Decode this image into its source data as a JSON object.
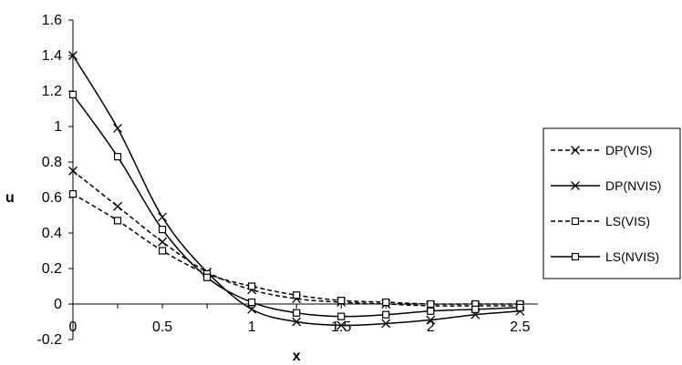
{
  "chart_data": {
    "type": "line",
    "title": "",
    "xlabel": "x",
    "ylabel": "u",
    "xlim": [
      0,
      2.6
    ],
    "ylim": [
      -0.2,
      1.6
    ],
    "x_ticks": [
      "0",
      "0.5",
      "1",
      "1.5",
      "2",
      "2.5"
    ],
    "x_tick_values": [
      0,
      0.5,
      1,
      1.5,
      2,
      2.5
    ],
    "y_ticks": [
      "-0.2",
      "0",
      "0.2",
      "0.4",
      "0.6",
      "0.8",
      "1",
      "1.2",
      "1.4",
      "1.6"
    ],
    "y_tick_values": [
      -0.2,
      0,
      0.2,
      0.4,
      0.6,
      0.8,
      1,
      1.2,
      1.4,
      1.6
    ],
    "grid": false,
    "legend_position": "right",
    "series": [
      {
        "name": "DP(VIS)",
        "line_style": "dashed",
        "marker": "x",
        "color": "#000000",
        "x": [
          0,
          0.25,
          0.5,
          0.75,
          1,
          1.25,
          1.5,
          1.75,
          2,
          2.25,
          2.5
        ],
        "y": [
          0.75,
          0.55,
          0.35,
          0.18,
          0.08,
          0.03,
          0.01,
          0.0,
          -0.01,
          -0.01,
          -0.01
        ]
      },
      {
        "name": "DP(NVIS)",
        "line_style": "solid",
        "marker": "x",
        "color": "#000000",
        "x": [
          0,
          0.25,
          0.5,
          0.75,
          1,
          1.25,
          1.5,
          1.75,
          2,
          2.25,
          2.5
        ],
        "y": [
          1.4,
          0.99,
          0.49,
          0.18,
          -0.03,
          -0.1,
          -0.12,
          -0.11,
          -0.09,
          -0.06,
          -0.04
        ]
      },
      {
        "name": "LS(VIS)",
        "line_style": "dashed",
        "marker": "square",
        "color": "#000000",
        "x": [
          0,
          0.25,
          0.5,
          0.75,
          1,
          1.25,
          1.5,
          1.75,
          2,
          2.25,
          2.5
        ],
        "y": [
          0.62,
          0.47,
          0.3,
          0.17,
          0.1,
          0.05,
          0.02,
          0.01,
          0.0,
          0.0,
          0.0
        ]
      },
      {
        "name": "LS(NVIS)",
        "line_style": "solid",
        "marker": "square",
        "color": "#000000",
        "x": [
          0,
          0.25,
          0.5,
          0.75,
          1,
          1.25,
          1.5,
          1.75,
          2,
          2.25,
          2.5
        ],
        "y": [
          1.18,
          0.83,
          0.42,
          0.15,
          0.01,
          -0.05,
          -0.07,
          -0.06,
          -0.04,
          -0.03,
          -0.02
        ]
      }
    ]
  }
}
